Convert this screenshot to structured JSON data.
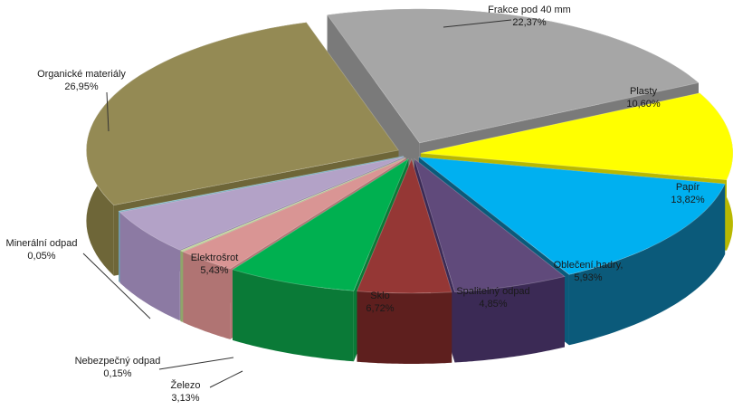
{
  "chart_data": {
    "type": "pie",
    "style": "3d-exploded",
    "slices": [
      {
        "label": "Frakce pod 40 mm",
        "value_text": "22,37%",
        "value": 22.37,
        "color": "#a6a6a6",
        "side": "#7a7a7a"
      },
      {
        "label": "Plasty",
        "value_text": "10,60%",
        "value": 10.6,
        "color": "#ffff00",
        "side": "#b8b800"
      },
      {
        "label": "Papír",
        "value_text": "13,82%",
        "value": 13.82,
        "color": "#00b0f0",
        "side": "#0b5a7a"
      },
      {
        "label": "Oblečení,hadry,",
        "value_text": "5,93%",
        "value": 5.93,
        "color": "#604a7b",
        "side": "#3b2a55"
      },
      {
        "label": "Spalitelný odpad",
        "value_text": "4,85%",
        "value": 4.85,
        "color": "#953735",
        "side": "#5e1f1e"
      },
      {
        "label": "Sklo",
        "value_text": "6,72%",
        "value": 6.72,
        "color": "#00b050",
        "side": "#0a7a37"
      },
      {
        "label": "Železo",
        "value_text": "3,13%",
        "value": 3.13,
        "color": "#d99594",
        "side": "#b07473"
      },
      {
        "label": "Nebezpečný odpad",
        "value_text": "0,15%",
        "value": 0.15,
        "color": "#c3d69b",
        "side": "#8fa66a"
      },
      {
        "label": "Elektrošrot",
        "value_text": "5,43%",
        "value": 5.43,
        "color": "#b3a2c7",
        "side": "#8c7aa3"
      },
      {
        "label": "Minerální odpad",
        "value_text": "0,05%",
        "value": 0.05,
        "color": "#93cddd",
        "side": "#6aa3b3"
      },
      {
        "label": "Organické materiály",
        "value_text": "26,95%",
        "value": 26.95,
        "color": "#948a54",
        "side": "#6e6638"
      }
    ]
  }
}
